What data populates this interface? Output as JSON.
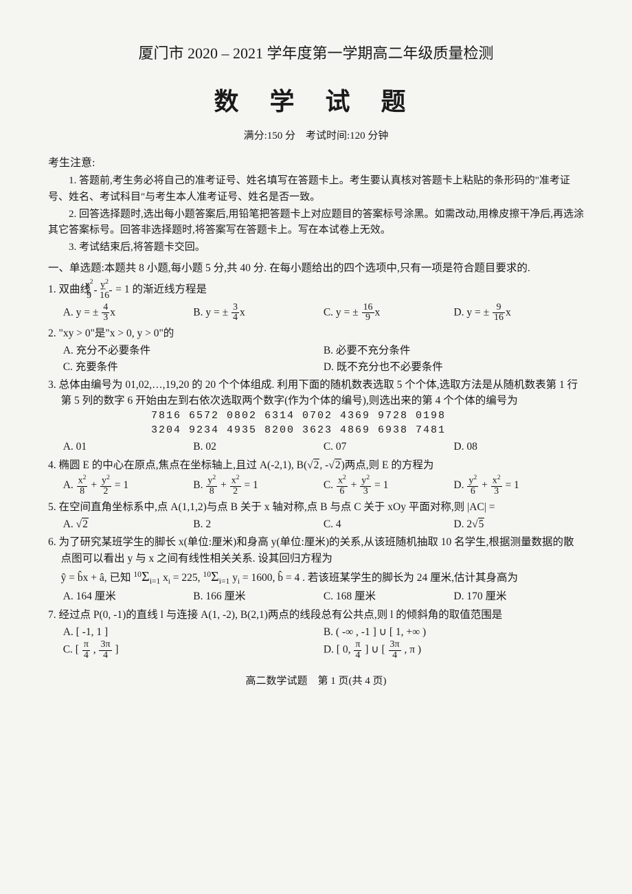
{
  "header": {
    "main_title": "厦门市 2020 – 2021 学年度第一学期高二年级质量检测",
    "subject": "数 学 试 题",
    "score_time": "满分:150 分　考试时间:120 分钟"
  },
  "notice": {
    "head": "考生注意:",
    "items": [
      "1. 答题前,考生务必将自己的准考证号、姓名填写在答题卡上。考生要认真核对答题卡上粘贴的条形码的\"准考证号、姓名、考试科目\"与考生本人准考证号、姓名是否一致。",
      "2. 回答选择题时,选出每小题答案后,用铅笔把答题卡上对应题目的答案标号涂黑。如需改动,用橡皮擦干净后,再选涂其它答案标号。回答非选择题时,将答案写在答题卡上。写在本试卷上无效。",
      "3. 考试结束后,将答题卡交回。"
    ]
  },
  "section1": {
    "head": "一、单选题:本题共 8 小题,每小题 5 分,共 40 分. 在每小题给出的四个选项中,只有一项是符合题目要求的."
  },
  "q1": {
    "stem_prefix": "1. 双曲线 ",
    "stem_suffix": " = 1 的渐近线方程是",
    "A": "A. y = ± (4/3)x",
    "B": "B. y = ± (3/4)x",
    "C": "C. y = ± (16/9)x",
    "D": "D. y = ± (9/16)x"
  },
  "q2": {
    "stem": "2. \"xy > 0\"是\"x > 0, y > 0\"的",
    "A": "A. 充分不必要条件",
    "B": "B. 必要不充分条件",
    "C": "C. 充要条件",
    "D": "D. 既不充分也不必要条件"
  },
  "q3": {
    "stem": "3. 总体由编号为 01,02,…,19,20 的 20 个个体组成. 利用下面的随机数表选取 5 个个体,选取方法是从随机数表第 1 行第 5 列的数字 6 开始由左到右依次选取两个数字(作为个体的编号),则选出来的第 4 个个体的编号为",
    "row1": "7816  6572  0802  6314  0702  4369  9728  0198",
    "row2": "3204  9234  4935  8200  3623  4869  6938  7481",
    "A": "A. 01",
    "B": "B. 02",
    "C": "C. 07",
    "D": "D. 08"
  },
  "q4": {
    "stem": "4. 椭圆 E 的中心在原点,焦点在坐标轴上,且过 A(-2,1), B(√2, -√2)两点,则 E 的方程为"
  },
  "q5": {
    "stem": "5. 在空间直角坐标系中,点 A(1,1,2)与点 B 关于 x 轴对称,点 B 与点 C 关于 xOy 平面对称,则 |AC| =",
    "A": "A. √2",
    "B": "B. 2",
    "C": "C. 4",
    "D": "D. 2√5"
  },
  "q6": {
    "stem1": "6. 为了研究某班学生的脚长 x(单位:厘米)和身高 y(单位:厘米)的关系,从该班随机抽取 10 名学生,根据测量数据的散点图可以看出 y 与 x 之间有线性相关关系. 设其回归方程为",
    "stem2_suffix": ". 若该班某学生的脚长为 24 厘米,估计其身高为",
    "A": "A. 164 厘米",
    "B": "B. 166 厘米",
    "C": "C. 168 厘米",
    "D": "D. 170 厘米"
  },
  "q7": {
    "stem": "7. 经过点 P(0, -1)的直线 l 与连接 A(1, -2), B(2,1)两点的线段总有公共点,则 l 的倾斜角的取值范围是",
    "A": "A. [ -1, 1 ]",
    "B": "B. ( -∞ , -1 ] ∪ [ 1, +∞ )"
  },
  "footer": "高二数学试题　第 1 页(共 4 页)"
}
